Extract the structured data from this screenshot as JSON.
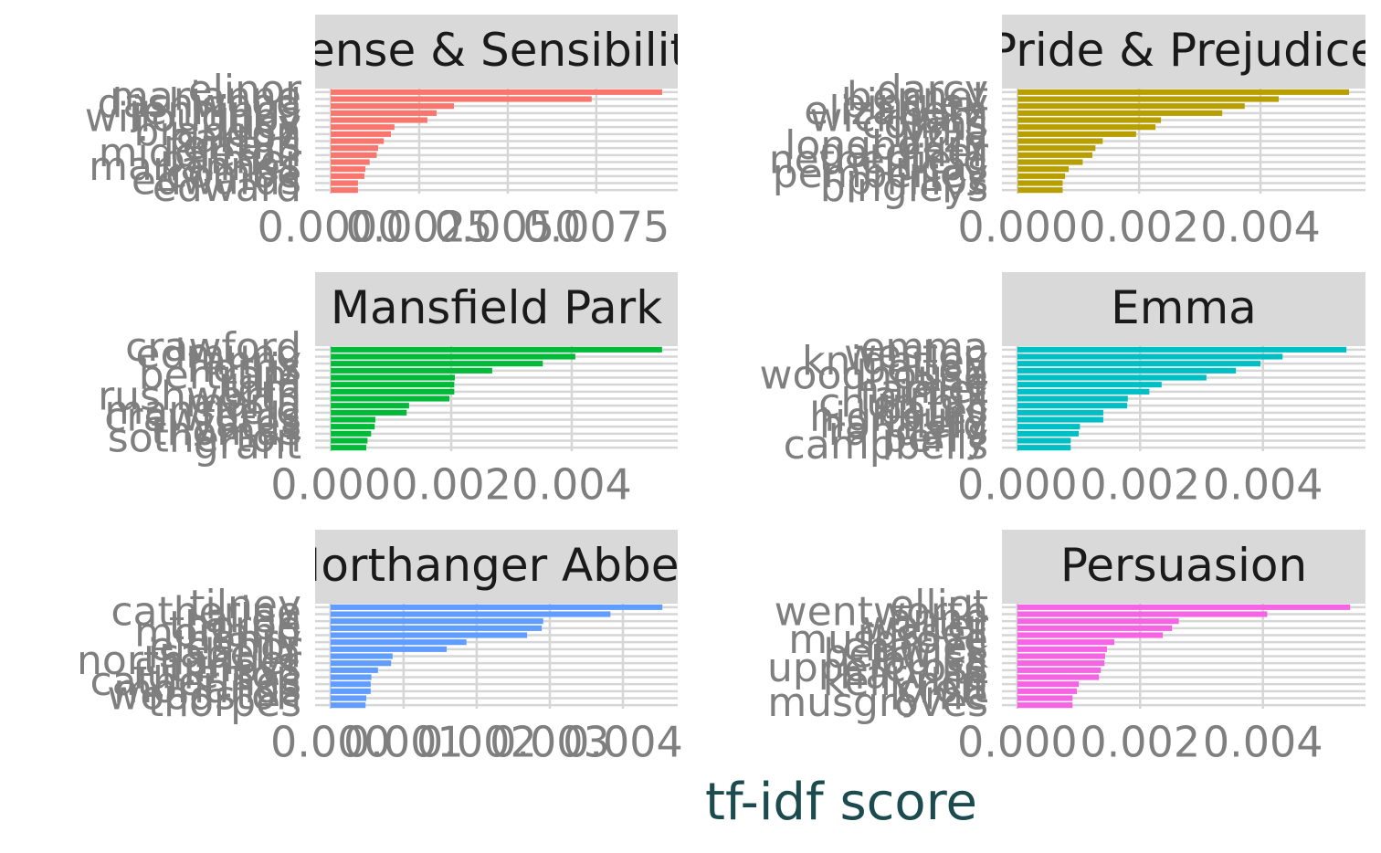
{
  "chart_data": [
    {
      "type": "bar",
      "title": "Sense & Sensibility",
      "color": "#f8766d",
      "categories": [
        "elinor",
        "marianne",
        "dashwood",
        "jennings",
        "willoughby",
        "lucy",
        "brandon",
        "barton",
        "ferrars",
        "middleton",
        "palmer",
        "mariannes",
        "combe",
        "edwards",
        "edward"
      ],
      "values": [
        0.00936,
        0.00737,
        0.00348,
        0.00299,
        0.00273,
        0.0018,
        0.0017,
        0.0015,
        0.00134,
        0.0013,
        0.0011,
        0.00098,
        0.00095,
        0.00077,
        0.00077
      ],
      "xlim": [
        -0.00044,
        0.0098
      ],
      "xticks": [
        {
          "value": 0,
          "label": "0.0000"
        },
        {
          "value": 0.0025,
          "label": "0.0025"
        },
        {
          "value": 0.005,
          "label": "0.0050"
        },
        {
          "value": 0.0075,
          "label": "0.0075"
        }
      ]
    },
    {
      "type": "bar",
      "title": "Pride & Prejudice",
      "color": "#b79f00",
      "categories": [
        "darcy",
        "bennet",
        "bingley",
        "elizabeth",
        "wickham",
        "collins",
        "lydia",
        "lizzy",
        "longbourn",
        "gardiner",
        "netherfield",
        "lucas",
        "pemberley",
        "phillips",
        "bingleys"
      ],
      "values": [
        0.00546,
        0.0043,
        0.00374,
        0.00337,
        0.00236,
        0.00227,
        0.00195,
        0.0014,
        0.00128,
        0.00123,
        0.00107,
        0.00084,
        0.00078,
        0.00074,
        0.00074
      ],
      "xlim": [
        -0.00026,
        0.00573
      ],
      "xticks": [
        {
          "value": 0,
          "label": "0.000"
        },
        {
          "value": 0.002,
          "label": "0.002"
        },
        {
          "value": 0.004,
          "label": "0.004"
        }
      ]
    },
    {
      "type": "bar",
      "title": "Mansfield Park",
      "color": "#00ba38",
      "categories": [
        "crawford",
        "edmund",
        "fanny",
        "norris",
        "bertram",
        "julia",
        "tom",
        "rushworth",
        "maria",
        "mansfield",
        "crawfords",
        "yates",
        "thomas",
        "sotherton",
        "grant"
      ],
      "values": [
        0.0055,
        0.00406,
        0.00352,
        0.00268,
        0.00206,
        0.00205,
        0.00205,
        0.00197,
        0.0013,
        0.00126,
        0.00074,
        0.00073,
        0.00067,
        0.00061,
        0.00059
      ],
      "xlim": [
        -0.00026,
        0.00576
      ],
      "xticks": [
        {
          "value": 0,
          "label": "0.000"
        },
        {
          "value": 0.002,
          "label": "0.002"
        },
        {
          "value": 0.004,
          "label": "0.004"
        }
      ]
    },
    {
      "type": "bar",
      "title": "Emma",
      "color": "#00bfc4",
      "categories": [
        "emma",
        "weston",
        "knightley",
        "elton",
        "woodhouse",
        "jane",
        "harriet",
        "fairfax",
        "churchill",
        "bates",
        "highbury",
        "hartfield",
        "randalls",
        "perry",
        "campbells"
      ],
      "values": [
        0.00536,
        0.00432,
        0.00396,
        0.00356,
        0.00308,
        0.00235,
        0.00215,
        0.0018,
        0.00179,
        0.0014,
        0.0014,
        0.00102,
        0.001,
        0.00087,
        0.00087
      ],
      "xlim": [
        -0.00025,
        0.00567
      ],
      "xticks": [
        {
          "value": 0,
          "label": "0.000"
        },
        {
          "value": 0.002,
          "label": "0.002"
        },
        {
          "value": 0.004,
          "label": "0.004"
        }
      ]
    },
    {
      "type": "bar",
      "title": "Northanger Abbey",
      "color": "#619cff",
      "categories": [
        "tilney",
        "catherine",
        "allen",
        "thorpe",
        "morland",
        "henry",
        "eleanor",
        "isabella",
        "northanger",
        "tilneys",
        "fullerton",
        "catherines",
        "morlands",
        "woodston",
        "thorpes"
      ],
      "values": [
        0.00454,
        0.00383,
        0.00291,
        0.00289,
        0.00269,
        0.00186,
        0.00159,
        0.00085,
        0.00083,
        0.00065,
        0.00056,
        0.00055,
        0.00055,
        0.00049,
        0.00048
      ],
      "xlim": [
        -0.00021,
        0.00475
      ],
      "xticks": [
        {
          "value": 0,
          "label": "0.000"
        },
        {
          "value": 0.001,
          "label": "0.001"
        },
        {
          "value": 0.002,
          "label": "0.002"
        },
        {
          "value": 0.003,
          "label": "0.003"
        },
        {
          "value": 0.004,
          "label": "0.004"
        }
      ]
    },
    {
      "type": "bar",
      "title": "Persuasion",
      "color": "#f564e3",
      "categories": [
        "elliot",
        "wentworth",
        "anne",
        "walter",
        "russell",
        "musgrove",
        "charles",
        "benwick",
        "louisa",
        "uppercross",
        "harville",
        "kellynch",
        "croft",
        "lyme",
        "musgroves"
      ],
      "values": [
        0.00542,
        0.00407,
        0.00263,
        0.00252,
        0.00237,
        0.00158,
        0.00146,
        0.00143,
        0.00142,
        0.00136,
        0.00133,
        0.001,
        0.00097,
        0.0009,
        0.0009
      ],
      "xlim": [
        -0.00025,
        0.00567
      ],
      "xticks": [
        {
          "value": 0,
          "label": "0.000"
        },
        {
          "value": 0.002,
          "label": "0.002"
        },
        {
          "value": 0.004,
          "label": "0.004"
        }
      ]
    }
  ],
  "x_label": "tf-idf score"
}
